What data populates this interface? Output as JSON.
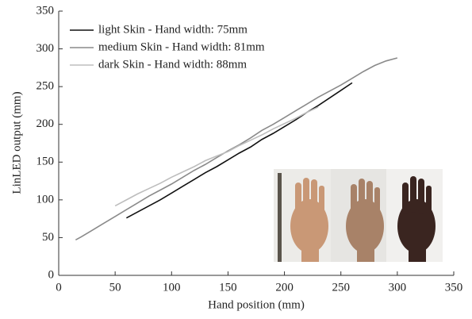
{
  "chart_data": {
    "type": "line",
    "x_label": "Hand position (mm)",
    "y_label": "LinLED output (mm)",
    "x": [
      15,
      20,
      30,
      40,
      50,
      60,
      70,
      80,
      90,
      100,
      110,
      120,
      130,
      140,
      150,
      160,
      170,
      180,
      190,
      200,
      210,
      220,
      230,
      240,
      250,
      260,
      270,
      280,
      290,
      300
    ],
    "series": [
      {
        "name": "light Skin - Hand width: 75mm",
        "color": "#111111",
        "values": [
          null,
          null,
          null,
          null,
          null,
          76,
          84,
          92,
          100,
          109,
          118,
          127,
          136,
          144,
          153,
          162,
          170,
          180,
          188,
          197,
          206,
          216,
          225,
          235,
          245,
          255,
          null,
          null,
          null,
          null
        ]
      },
      {
        "name": "medium Skin - Hand width: 81mm",
        "color": "#8a8a8a",
        "values": [
          47,
          51,
          60,
          69,
          78,
          87,
          96,
          105,
          113,
          121,
          130,
          139,
          147,
          156,
          165,
          173,
          182,
          192,
          200,
          209,
          218,
          227,
          236,
          244,
          252,
          261,
          270,
          278,
          284,
          288
        ]
      },
      {
        "name": "dark Skin - Hand width: 88mm",
        "color": "#bdbdbd",
        "values": [
          null,
          null,
          null,
          null,
          92,
          100,
          108,
          115,
          122,
          130,
          137,
          144,
          152,
          158,
          164,
          172,
          179,
          186,
          194,
          201,
          208,
          216,
          223,
          null,
          null,
          null,
          null,
          null,
          null,
          null
        ]
      }
    ],
    "xlim": [
      0,
      350
    ],
    "xticks": [
      0,
      50,
      100,
      150,
      200,
      250,
      300,
      350
    ],
    "ylim": [
      0,
      350
    ],
    "yticks": [
      0,
      50,
      100,
      150,
      200,
      250,
      300,
      350
    ],
    "legend": "upper left"
  }
}
